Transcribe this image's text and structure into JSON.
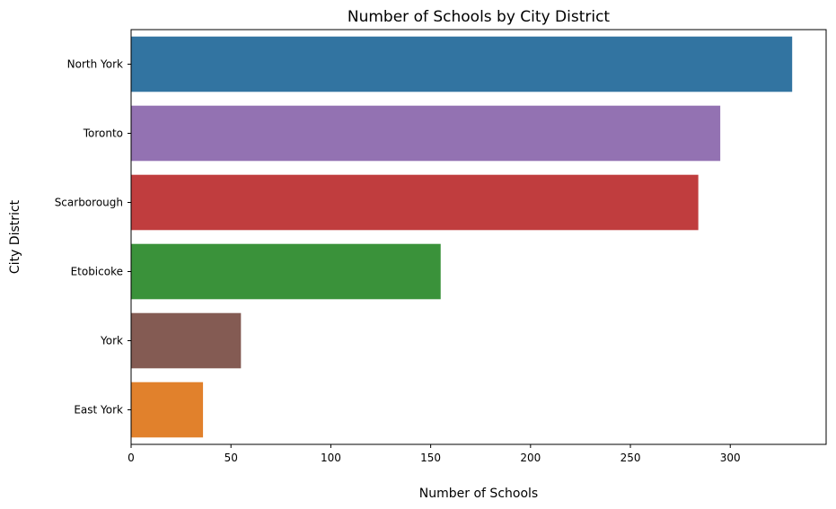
{
  "chart_data": {
    "type": "bar",
    "orientation": "horizontal",
    "title": "Number of Schools by City District",
    "xlabel": "Number of Schools",
    "ylabel": "City District",
    "categories": [
      "North York",
      "Toronto",
      "Scarborough",
      "Etobicoke",
      "York",
      "East York"
    ],
    "values": [
      331,
      295,
      284,
      155,
      55,
      36
    ],
    "colors": [
      "#3274a1",
      "#9372b2",
      "#c03d3e",
      "#3a923a",
      "#845b53",
      "#e1812c"
    ],
    "xlim": [
      0,
      348
    ],
    "xticks": [
      0,
      50,
      100,
      150,
      200,
      250,
      300
    ],
    "grid": false,
    "legend": "none"
  }
}
